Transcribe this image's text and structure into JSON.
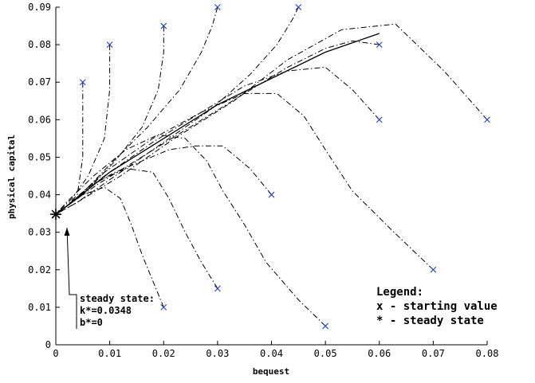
{
  "chart_data": {
    "type": "line",
    "title": "",
    "xlabel": "bequest",
    "ylabel": "physical capital",
    "xlim": [
      0,
      0.08
    ],
    "ylim": [
      0,
      0.09
    ],
    "xticks": [
      "0",
      "0.01",
      "0.02",
      "0.03",
      "0.04",
      "0.05",
      "0.06",
      "0.07",
      "0.08"
    ],
    "yticks": [
      "0",
      "0.01",
      "0.02",
      "0.03",
      "0.04",
      "0.05",
      "0.06",
      "0.07",
      "0.08",
      "0.09"
    ],
    "grid": false,
    "steady_state": {
      "x": 0,
      "y": 0.0348,
      "marker": "*"
    },
    "starting_points": [
      {
        "x": 0.005,
        "y": 0.07
      },
      {
        "x": 0.01,
        "y": 0.08
      },
      {
        "x": 0.02,
        "y": 0.085
      },
      {
        "x": 0.03,
        "y": 0.09
      },
      {
        "x": 0.045,
        "y": 0.09
      },
      {
        "x": 0.06,
        "y": 0.08
      },
      {
        "x": 0.06,
        "y": 0.06
      },
      {
        "x": 0.08,
        "y": 0.06
      },
      {
        "x": 0.04,
        "y": 0.04
      },
      {
        "x": 0.07,
        "y": 0.02
      },
      {
        "x": 0.03,
        "y": 0.015
      },
      {
        "x": 0.05,
        "y": 0.005
      },
      {
        "x": 0.02,
        "y": 0.01
      }
    ],
    "series": [
      {
        "x": [
          0.005,
          0.005,
          0.004,
          0.002,
          0
        ],
        "y": [
          0.07,
          0.05,
          0.04,
          0.037,
          0.0348
        ]
      },
      {
        "x": [
          0.01,
          0.01,
          0.009,
          0.006,
          0.003,
          0
        ],
        "y": [
          0.08,
          0.068,
          0.055,
          0.045,
          0.039,
          0.0348
        ]
      },
      {
        "x": [
          0.02,
          0.02,
          0.019,
          0.016,
          0.011,
          0.005,
          0
        ],
        "y": [
          0.085,
          0.078,
          0.068,
          0.058,
          0.049,
          0.04,
          0.0348
        ]
      },
      {
        "x": [
          0.03,
          0.029,
          0.027,
          0.023,
          0.017,
          0.01,
          0.004,
          0
        ],
        "y": [
          0.09,
          0.085,
          0.078,
          0.068,
          0.058,
          0.048,
          0.039,
          0.0348
        ]
      },
      {
        "x": [
          0.045,
          0.044,
          0.041,
          0.036,
          0.029,
          0.02,
          0.011,
          0.004,
          0
        ],
        "y": [
          0.09,
          0.087,
          0.08,
          0.072,
          0.063,
          0.054,
          0.045,
          0.038,
          0.0348
        ]
      },
      {
        "x": [
          0.06,
          0.055,
          0.05,
          0.043,
          0.035,
          0.026,
          0.017,
          0.008,
          0.002,
          0
        ],
        "y": [
          0.08,
          0.081,
          0.079,
          0.074,
          0.067,
          0.059,
          0.051,
          0.043,
          0.037,
          0.0348
        ]
      },
      {
        "x": [
          0.06,
          0.055,
          0.05,
          0.043,
          0.035,
          0.027,
          0.018,
          0.009,
          0.003,
          0
        ],
        "y": [
          0.06,
          0.068,
          0.074,
          0.073,
          0.069,
          0.062,
          0.054,
          0.045,
          0.038,
          0.0348
        ]
      },
      {
        "x": [
          0.08,
          0.072,
          0.063,
          0.053,
          0.043,
          0.033,
          0.022,
          0.012,
          0.004,
          0
        ],
        "y": [
          0.06,
          0.073,
          0.0855,
          0.084,
          0.076,
          0.065,
          0.055,
          0.045,
          0.038,
          0.0348
        ]
      },
      {
        "x": [
          0.04,
          0.036,
          0.031,
          0.026,
          0.021,
          0.016,
          0.011,
          0.006,
          0.002,
          0
        ],
        "y": [
          0.04,
          0.047,
          0.053,
          0.053,
          0.052,
          0.049,
          0.046,
          0.042,
          0.037,
          0.0348
        ]
      },
      {
        "x": [
          0.07,
          0.062,
          0.055,
          0.05,
          0.046,
          0.041,
          0.035,
          0.027,
          0.018,
          0.009,
          0.003,
          0
        ],
        "y": [
          0.02,
          0.031,
          0.041,
          0.052,
          0.061,
          0.067,
          0.067,
          0.062,
          0.055,
          0.046,
          0.038,
          0.0348
        ]
      },
      {
        "x": [
          0.03,
          0.027,
          0.024,
          0.021,
          0.018,
          0.013,
          0.007,
          0.002,
          0
        ],
        "y": [
          0.015,
          0.022,
          0.03,
          0.039,
          0.046,
          0.047,
          0.043,
          0.037,
          0.0348
        ]
      },
      {
        "x": [
          0.05,
          0.045,
          0.039,
          0.035,
          0.031,
          0.028,
          0.024,
          0.019,
          0.013,
          0.007,
          0.002,
          0
        ],
        "y": [
          0.005,
          0.012,
          0.022,
          0.032,
          0.041,
          0.049,
          0.055,
          0.056,
          0.052,
          0.045,
          0.038,
          0.0348
        ]
      },
      {
        "x": [
          0.02,
          0.018,
          0.016,
          0.014,
          0.012,
          0.009,
          0.005,
          0.001,
          0
        ],
        "y": [
          0.01,
          0.017,
          0.024,
          0.032,
          0.039,
          0.042,
          0.04,
          0.036,
          0.0348
        ]
      },
      {
        "x": [
          0.06,
          0.05,
          0.04,
          0.03,
          0.02,
          0.01,
          0.003,
          0
        ],
        "y": [
          0.083,
          0.078,
          0.071,
          0.064,
          0.055,
          0.046,
          0.038,
          0.0348
        ],
        "style": "solid"
      }
    ],
    "annotation": {
      "lines": [
        "steady state:",
        "k*=0.0348",
        "b*=0"
      ]
    },
    "legend": {
      "placement": "bottom-right",
      "title": "Legend:",
      "entries": [
        "x - starting value",
        "* - steady state"
      ]
    },
    "colors": {
      "start_marker": "#1f3fbf",
      "lines": "#000000"
    }
  }
}
